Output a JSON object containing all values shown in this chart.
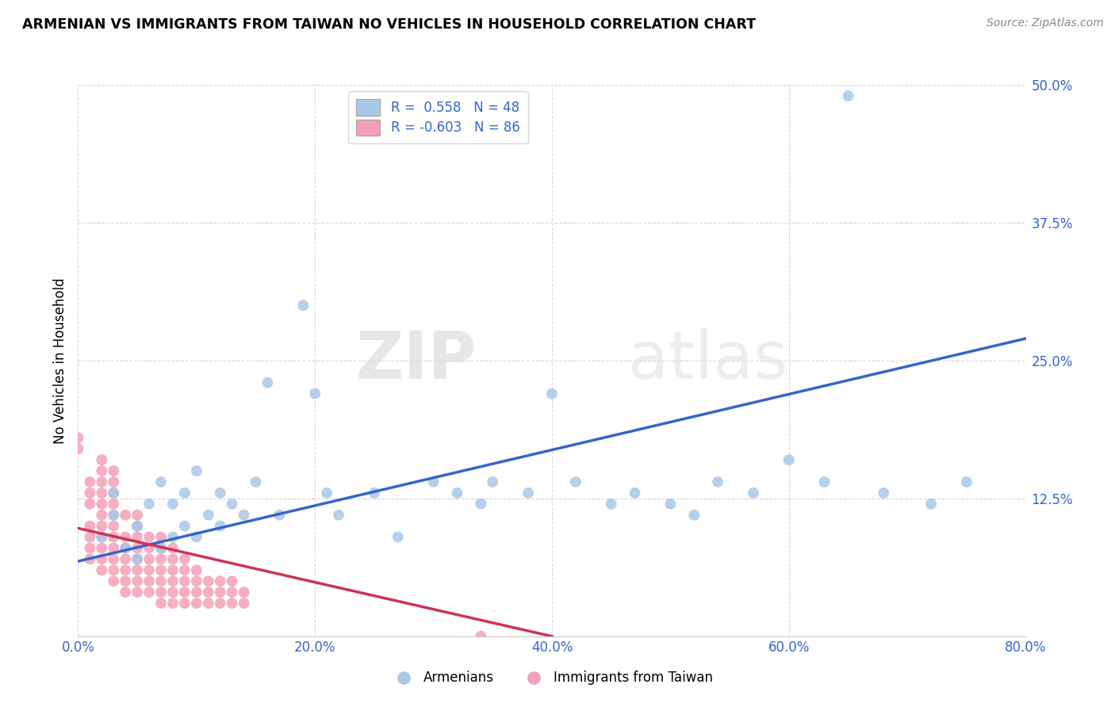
{
  "title": "ARMENIAN VS IMMIGRANTS FROM TAIWAN NO VEHICLES IN HOUSEHOLD CORRELATION CHART",
  "source": "Source: ZipAtlas.com",
  "ylabel": "No Vehicles in Household",
  "xlim": [
    0.0,
    0.8
  ],
  "ylim": [
    0.0,
    0.5
  ],
  "xticks": [
    0.0,
    0.2,
    0.4,
    0.6,
    0.8
  ],
  "yticks": [
    0.0,
    0.125,
    0.25,
    0.375,
    0.5
  ],
  "xtick_labels": [
    "0.0%",
    "20.0%",
    "40.0%",
    "60.0%",
    "80.0%"
  ],
  "ytick_labels": [
    "",
    "12.5%",
    "25.0%",
    "37.5%",
    "50.0%"
  ],
  "blue_R": 0.558,
  "blue_N": 48,
  "pink_R": -0.603,
  "pink_N": 86,
  "blue_color": "#A8C8E8",
  "pink_color": "#F4A0B8",
  "blue_line_color": "#3366CC",
  "pink_line_color": "#CC3355",
  "legend_label_blue": "Armenians",
  "legend_label_pink": "Immigrants from Taiwan",
  "watermark_zip": "ZIP",
  "watermark_atlas": "atlas",
  "blue_x": [
    0.02,
    0.03,
    0.03,
    0.04,
    0.05,
    0.05,
    0.06,
    0.07,
    0.07,
    0.08,
    0.08,
    0.09,
    0.09,
    0.1,
    0.1,
    0.11,
    0.12,
    0.12,
    0.13,
    0.14,
    0.15,
    0.16,
    0.17,
    0.19,
    0.2,
    0.21,
    0.22,
    0.25,
    0.27,
    0.3,
    0.32,
    0.34,
    0.35,
    0.38,
    0.4,
    0.42,
    0.45,
    0.47,
    0.5,
    0.52,
    0.54,
    0.57,
    0.6,
    0.63,
    0.65,
    0.68,
    0.72,
    0.75
  ],
  "blue_y": [
    0.09,
    0.11,
    0.13,
    0.08,
    0.07,
    0.1,
    0.12,
    0.08,
    0.14,
    0.09,
    0.12,
    0.1,
    0.13,
    0.09,
    0.15,
    0.11,
    0.13,
    0.1,
    0.12,
    0.11,
    0.14,
    0.23,
    0.11,
    0.3,
    0.22,
    0.13,
    0.11,
    0.13,
    0.09,
    0.14,
    0.13,
    0.12,
    0.14,
    0.13,
    0.22,
    0.14,
    0.12,
    0.13,
    0.12,
    0.11,
    0.14,
    0.13,
    0.16,
    0.14,
    0.49,
    0.13,
    0.12,
    0.14
  ],
  "pink_x": [
    0.0,
    0.0,
    0.01,
    0.01,
    0.01,
    0.01,
    0.01,
    0.01,
    0.01,
    0.02,
    0.02,
    0.02,
    0.02,
    0.02,
    0.02,
    0.02,
    0.02,
    0.02,
    0.02,
    0.02,
    0.03,
    0.03,
    0.03,
    0.03,
    0.03,
    0.03,
    0.03,
    0.03,
    0.03,
    0.03,
    0.03,
    0.04,
    0.04,
    0.04,
    0.04,
    0.04,
    0.04,
    0.04,
    0.05,
    0.05,
    0.05,
    0.05,
    0.05,
    0.05,
    0.05,
    0.05,
    0.06,
    0.06,
    0.06,
    0.06,
    0.06,
    0.06,
    0.07,
    0.07,
    0.07,
    0.07,
    0.07,
    0.07,
    0.07,
    0.08,
    0.08,
    0.08,
    0.08,
    0.08,
    0.08,
    0.09,
    0.09,
    0.09,
    0.09,
    0.09,
    0.1,
    0.1,
    0.1,
    0.1,
    0.11,
    0.11,
    0.11,
    0.12,
    0.12,
    0.12,
    0.13,
    0.13,
    0.13,
    0.14,
    0.14,
    0.34
  ],
  "pink_y": [
    0.17,
    0.18,
    0.07,
    0.08,
    0.09,
    0.1,
    0.12,
    0.13,
    0.14,
    0.06,
    0.07,
    0.08,
    0.09,
    0.1,
    0.11,
    0.12,
    0.13,
    0.14,
    0.15,
    0.16,
    0.05,
    0.06,
    0.07,
    0.08,
    0.09,
    0.1,
    0.11,
    0.12,
    0.13,
    0.14,
    0.15,
    0.04,
    0.05,
    0.06,
    0.07,
    0.08,
    0.09,
    0.11,
    0.04,
    0.05,
    0.06,
    0.07,
    0.08,
    0.09,
    0.1,
    0.11,
    0.04,
    0.05,
    0.06,
    0.07,
    0.08,
    0.09,
    0.03,
    0.04,
    0.05,
    0.06,
    0.07,
    0.08,
    0.09,
    0.03,
    0.04,
    0.05,
    0.06,
    0.07,
    0.08,
    0.03,
    0.04,
    0.05,
    0.06,
    0.07,
    0.03,
    0.04,
    0.05,
    0.06,
    0.03,
    0.04,
    0.05,
    0.03,
    0.04,
    0.05,
    0.03,
    0.04,
    0.05,
    0.03,
    0.04,
    0.0
  ],
  "blue_line_x0": 0.0,
  "blue_line_y0": 0.068,
  "blue_line_x1": 0.8,
  "blue_line_y1": 0.27,
  "pink_line_x0": 0.0,
  "pink_line_y0": 0.098,
  "pink_line_x1": 0.4,
  "pink_line_y1": 0.0
}
